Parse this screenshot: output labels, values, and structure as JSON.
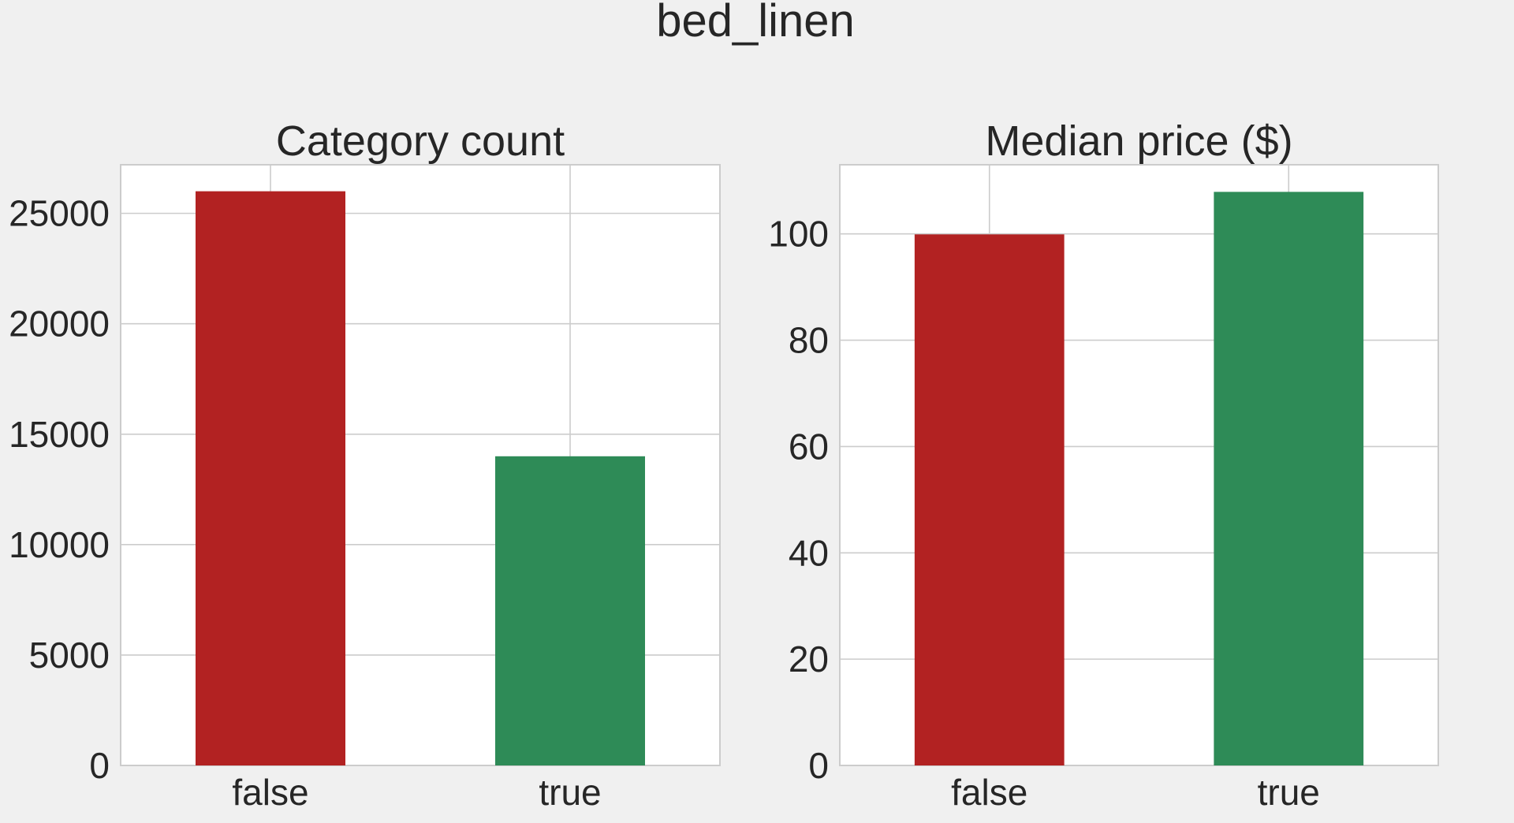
{
  "figure": {
    "title": "bed_linen",
    "background": "#f0f0f0"
  },
  "chart_data": [
    {
      "type": "bar",
      "title": "Category count",
      "xlabel": "",
      "ylabel": "",
      "categories": [
        "false",
        "true"
      ],
      "values": [
        26000,
        14000
      ],
      "colors": [
        "#b22222",
        "#2e8b57"
      ],
      "ylim": [
        0,
        27200
      ],
      "yticks": [
        0,
        5000,
        10000,
        15000,
        20000,
        25000
      ],
      "ytick_labels": [
        "0",
        "5000",
        "10000",
        "15000",
        "20000",
        "25000"
      ],
      "grid": true,
      "legend": "none"
    },
    {
      "type": "bar",
      "title": "Median price ($)",
      "xlabel": "",
      "ylabel": "",
      "categories": [
        "false",
        "true"
      ],
      "values": [
        99.9,
        107.9
      ],
      "colors": [
        "#b22222",
        "#2e8b57"
      ],
      "ylim": [
        0,
        113
      ],
      "yticks": [
        0,
        20,
        40,
        60,
        80,
        100
      ],
      "ytick_labels": [
        "0",
        "20",
        "40",
        "60",
        "80",
        "100"
      ],
      "grid": true,
      "legend": "none"
    }
  ]
}
